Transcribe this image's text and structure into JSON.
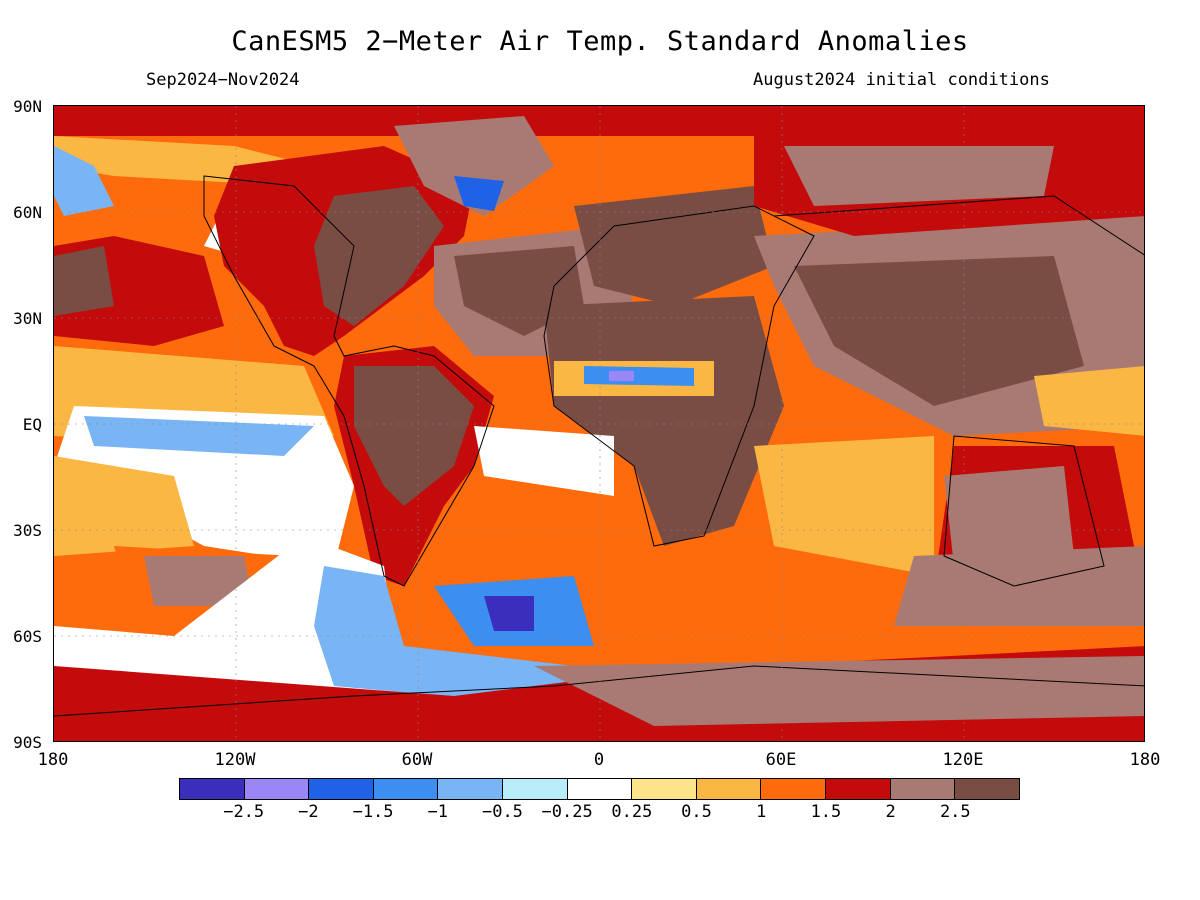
{
  "title": "CanESM5 2−Meter Air Temp. Standard Anomalies",
  "period": "Sep2024−Nov2024",
  "initial_conditions": "August2024 initial conditions",
  "lat_labels": [
    "90N",
    "60N",
    "30N",
    "EQ",
    "30S",
    "60S",
    "90S"
  ],
  "lon_labels": [
    "180",
    "120W",
    "60W",
    "0",
    "60E",
    "120E",
    "180"
  ],
  "colorbar": {
    "colors": [
      "#3c2ebd",
      "#9b86f5",
      "#1f62e6",
      "#3c8ff0",
      "#79b4f4",
      "#b7ecf8",
      "#ffffff",
      "#fde48a",
      "#fbb744",
      "#fd6b0c",
      "#c40b0b",
      "#a97a73",
      "#7a4d44"
    ],
    "labels": [
      "−2.5",
      "−2",
      "−1.5",
      "−1",
      "−0.5",
      "−0.25",
      "0.25",
      "0.5",
      "1",
      "1.5",
      "2",
      "2.5"
    ]
  }
}
